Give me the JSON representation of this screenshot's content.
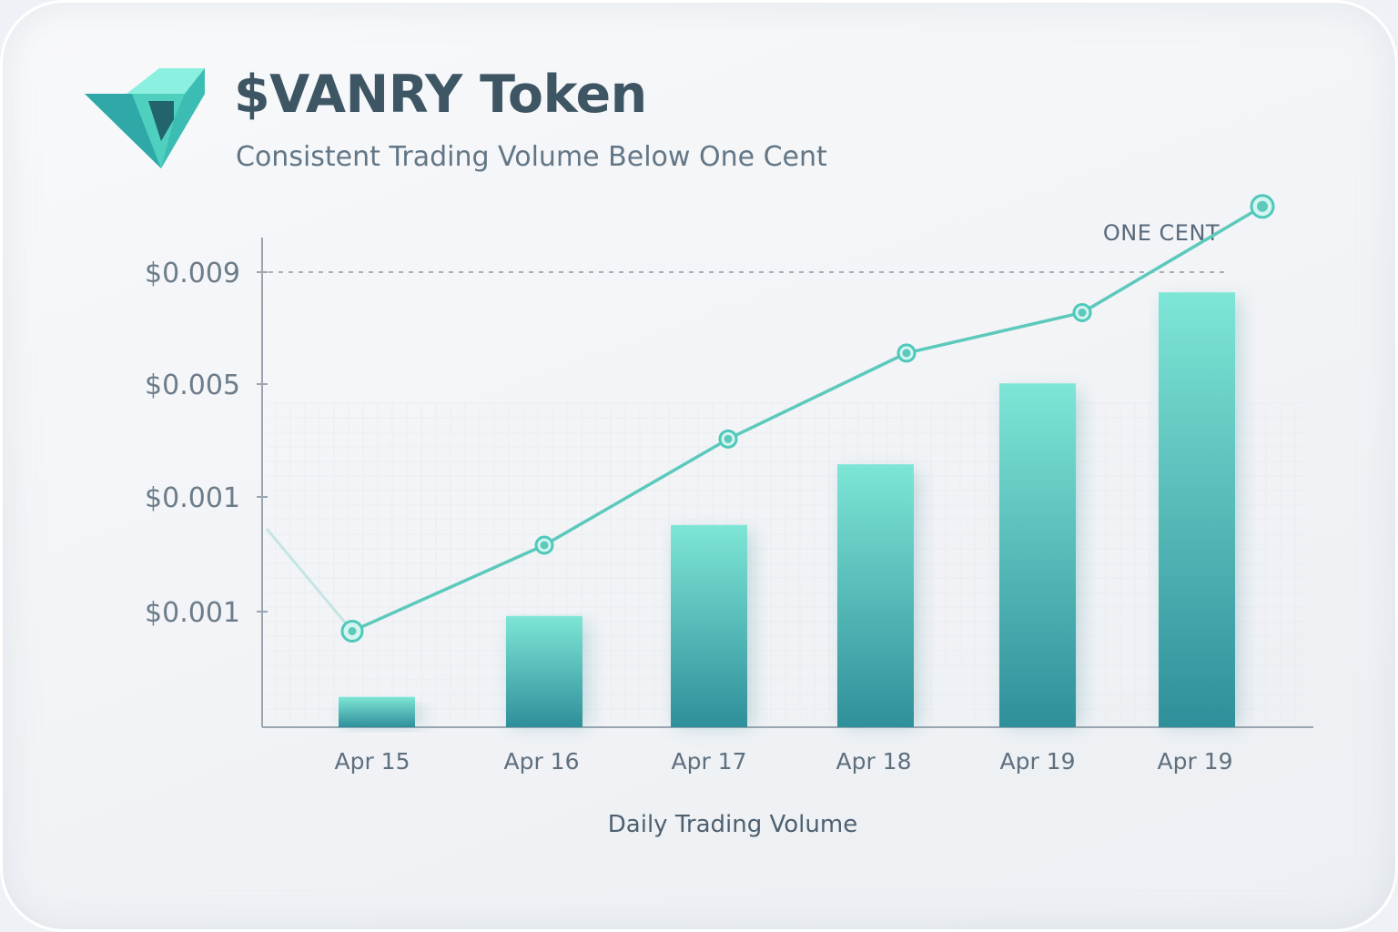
{
  "header": {
    "title": "$VANRY Token",
    "subtitle": "Consistent Trading Volume Below One Cent",
    "logo_icon": "vanry-v-logo-icon"
  },
  "colors": {
    "accent": "#4fc8bb",
    "bar_top": "#7ee6d6",
    "bar_bottom": "#2f8f9a",
    "line": "#5cc9bc",
    "title": "#3e5564",
    "text": "#627685",
    "axis": "#9aa5b0"
  },
  "chart_data": {
    "type": "bar",
    "title": "$VANRY Token",
    "subtitle": "Consistent Trading Volume Below One Cent",
    "xlabel": "Daily Trading Volume",
    "ylabel": "",
    "categories": [
      "Apr 15",
      "Apr 16",
      "Apr 17",
      "Apr 18",
      "Apr 19",
      "Apr 19"
    ],
    "y_tick_labels": [
      "$0.009",
      "$0.005",
      "$0.001",
      "$0.001"
    ],
    "series": [
      {
        "kind": "bar",
        "values": [
          0.0006,
          0.0022,
          0.004,
          0.0052,
          0.0068,
          0.0086
        ]
      },
      {
        "kind": "line",
        "values": [
          0.0019,
          0.0036,
          0.0057,
          0.0074,
          0.0082,
          0.0103
        ]
      }
    ],
    "reference_line": {
      "label": "ONE CENT",
      "value": 0.009
    },
    "grid": false,
    "legend": "none"
  }
}
